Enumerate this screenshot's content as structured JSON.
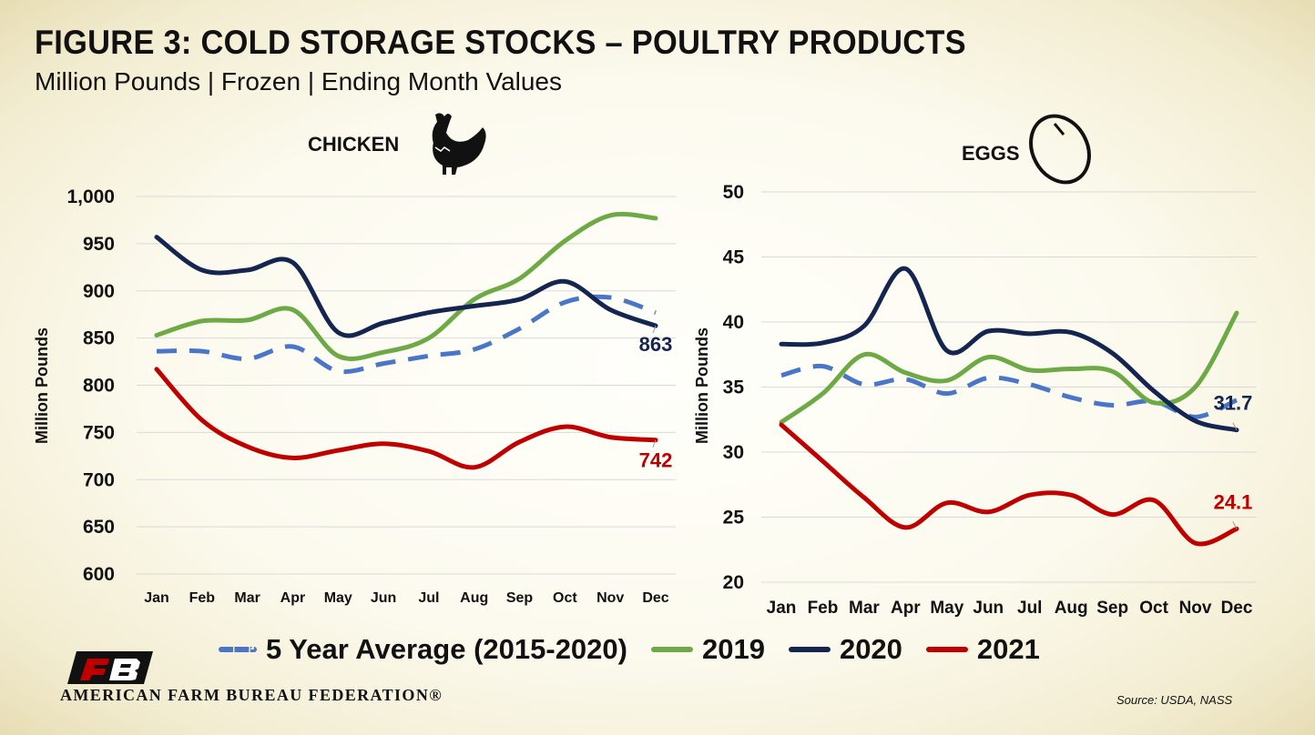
{
  "page": {
    "title": "FIGURE 3: COLD STORAGE STOCKS – POULTRY PRODUCTS",
    "subtitle": "Million Pounds | Frozen | Ending Month Values",
    "source": "Source: USDA, NASS",
    "org_name": "AMERICAN FARM BUREAU FEDERATION®",
    "logo_text": "FB"
  },
  "legend": [
    {
      "label": "5 Year Average (2015-2020)",
      "color": "#4a76c8",
      "style": "dashed"
    },
    {
      "label": "2019",
      "color": "#6daa45",
      "style": "solid"
    },
    {
      "label": "2020",
      "color": "#14264f",
      "style": "solid"
    },
    {
      "label": "2021",
      "color": "#c00000",
      "style": "solid"
    }
  ],
  "chart_data": [
    {
      "type": "line",
      "title": "CHICKEN",
      "icon": "chicken-icon",
      "ylabel": "Million Pounds",
      "ylim": [
        600,
        1000
      ],
      "yticks": [
        "600",
        "650",
        "700",
        "750",
        "800",
        "850",
        "900",
        "950",
        "1,000"
      ],
      "grid": true,
      "categories": [
        "Jan",
        "Feb",
        "Mar",
        "Apr",
        "May",
        "Jun",
        "Jul",
        "Aug",
        "Sep",
        "Oct",
        "Nov",
        "Dec"
      ],
      "series": [
        {
          "name": "5 Year Average (2015-2020)",
          "color": "#4a76c8",
          "dashed": true,
          "values": [
            836,
            836,
            828,
            841,
            815,
            823,
            831,
            838,
            860,
            888,
            893,
            877
          ]
        },
        {
          "name": "2019",
          "color": "#6daa45",
          "values": [
            853,
            868,
            869,
            880,
            831,
            835,
            850,
            891,
            913,
            953,
            980,
            977
          ]
        },
        {
          "name": "2020",
          "color": "#14264f",
          "values": [
            957,
            922,
            922,
            930,
            856,
            866,
            877,
            884,
            891,
            910,
            880,
            863
          ]
        },
        {
          "name": "2021",
          "color": "#c00000",
          "values": [
            817,
            763,
            735,
            723,
            731,
            738,
            730,
            713,
            740,
            756,
            745,
            742
          ]
        }
      ],
      "annotations": [
        {
          "series": "2020",
          "text": "863",
          "color": "#14264f"
        },
        {
          "series": "2021",
          "text": "742",
          "color": "#c00000"
        }
      ]
    },
    {
      "type": "line",
      "title": "EGGS",
      "icon": "egg-icon",
      "ylabel": "Million Pounds",
      "ylim": [
        20,
        50
      ],
      "yticks": [
        "20",
        "25",
        "30",
        "35",
        "40",
        "45",
        "50"
      ],
      "grid": true,
      "categories": [
        "Jan",
        "Feb",
        "Mar",
        "Apr",
        "May",
        "Jun",
        "Jul",
        "Aug",
        "Sep",
        "Oct",
        "Nov",
        "Dec"
      ],
      "series": [
        {
          "name": "5 Year Average (2015-2020)",
          "color": "#4a76c8",
          "dashed": true,
          "values": [
            35.9,
            36.6,
            35.2,
            35.6,
            34.5,
            35.7,
            35.2,
            34.2,
            33.6,
            33.9,
            32.7,
            34.0
          ]
        },
        {
          "name": "2019",
          "color": "#6daa45",
          "values": [
            32.3,
            34.5,
            37.5,
            36.1,
            35.5,
            37.3,
            36.3,
            36.4,
            36.2,
            33.8,
            35.0,
            40.7
          ]
        },
        {
          "name": "2020",
          "color": "#14264f",
          "values": [
            38.3,
            38.4,
            39.7,
            44.1,
            37.8,
            39.3,
            39.1,
            39.2,
            37.6,
            34.7,
            32.4,
            31.7
          ]
        },
        {
          "name": "2021",
          "color": "#c00000",
          "values": [
            32.1,
            29.3,
            26.5,
            24.2,
            26.1,
            25.4,
            26.7,
            26.7,
            25.2,
            26.3,
            23.0,
            24.1
          ]
        }
      ],
      "annotations": [
        {
          "series": "2020",
          "text": "31.7",
          "color": "#14264f"
        },
        {
          "series": "2021",
          "text": "24.1",
          "color": "#c00000"
        }
      ]
    }
  ]
}
